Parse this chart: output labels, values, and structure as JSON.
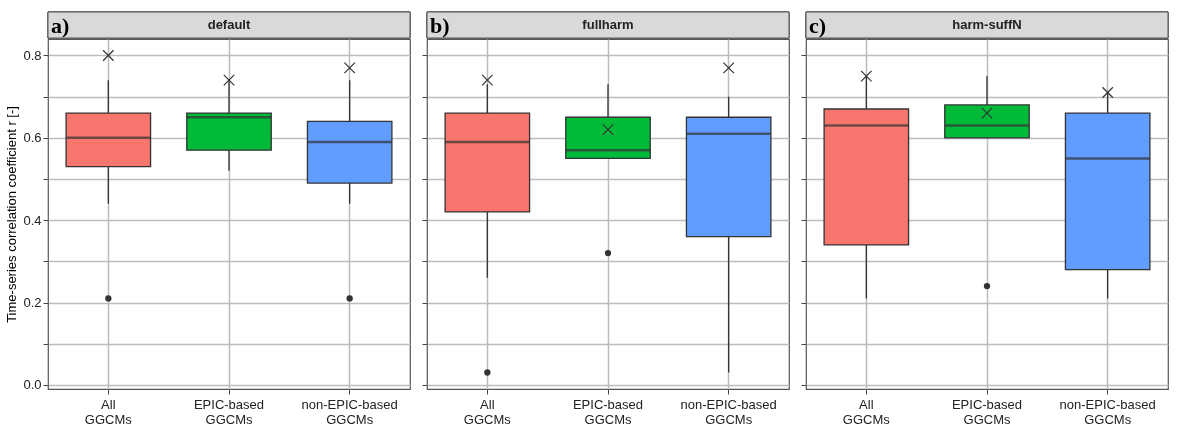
{
  "chart_data": [
    {
      "type": "box",
      "title": "default",
      "annotations": [
        "a)"
      ],
      "ylabel": "Time-series correlation coefficient r [-]",
      "categories": [
        "All GGCMs",
        "EPIC-based GGCMs",
        "non-EPIC-based GGCMs"
      ],
      "colors": [
        "#f8766d",
        "#00ba38",
        "#619cff"
      ],
      "ylim": [
        -0.01,
        0.84
      ],
      "yticks": [
        {
          "value": 0,
          "label": "0.0"
        },
        {
          "value": 0.1,
          "label": null
        },
        0.2,
        {
          "value": 0.3,
          "label": null
        },
        0.4,
        {
          "value": 0.5,
          "label": null
        },
        0.6,
        {
          "value": 0.7,
          "label": null
        },
        0.8
      ],
      "grid": true,
      "marker": "cross",
      "boxes": [
        {
          "low": 0.44,
          "q1": 0.53,
          "median": 0.6,
          "q3": 0.66,
          "high": 0.74,
          "mean": 0.8,
          "outliers": [
            0.21
          ]
        },
        {
          "low": 0.52,
          "q1": 0.57,
          "median": 0.65,
          "q3": 0.66,
          "high": 0.74,
          "mean": 0.74
        },
        {
          "low": 0.44,
          "q1": 0.49,
          "median": 0.59,
          "q3": 0.64,
          "high": 0.74,
          "mean": 0.77,
          "outliers": [
            0.21
          ]
        }
      ]
    },
    {
      "type": "box",
      "title": "fullharm",
      "annotations": [
        "b)"
      ],
      "categories": [
        "All GGCMs",
        "EPIC-based GGCMs",
        "non-EPIC-based GGCMs"
      ],
      "colors": [
        "#f8766d",
        "#00ba38",
        "#619cff"
      ],
      "ylim": [
        -0.01,
        0.84
      ],
      "yticks": [
        0,
        {
          "value": 0.1,
          "label": null
        },
        0.2,
        {
          "value": 0.3,
          "label": null
        },
        0.4,
        {
          "value": 0.5,
          "label": null
        },
        0.6,
        {
          "value": 0.7,
          "label": null
        },
        0.8
      ],
      "grid": true,
      "marker": "cross",
      "tick_labels": "x",
      "boxes": [
        {
          "low": 0.26,
          "q1": 0.42,
          "median": 0.59,
          "q3": 0.66,
          "high": 0.73,
          "mean": 0.74,
          "outliers": [
            0.03
          ]
        },
        {
          "low": 0.55,
          "q1": 0.55,
          "median": 0.57,
          "q3": 0.65,
          "high": 0.73,
          "mean": 0.62,
          "outliers": [
            0.32
          ]
        },
        {
          "low": 0.03,
          "q1": 0.36,
          "median": 0.61,
          "q3": 0.65,
          "high": 0.7,
          "mean": 0.77
        }
      ]
    },
    {
      "type": "box",
      "title": "harm-suffN",
      "annotations": [
        "c)"
      ],
      "categories": [
        "All GGCMs",
        "EPIC-based GGCMs",
        "non-EPIC-based GGCMs"
      ],
      "colors": [
        "#f8766d",
        "#00ba38",
        "#619cff"
      ],
      "ylim": [
        -0.01,
        0.84
      ],
      "yticks": [
        0,
        {
          "value": 0.1,
          "label": null
        },
        0.2,
        {
          "value": 0.3,
          "label": null
        },
        0.4,
        {
          "value": 0.5,
          "label": null
        },
        0.6,
        {
          "value": 0.7,
          "label": null
        },
        0.8
      ],
      "grid": true,
      "marker": "cross",
      "tick_labels": "x",
      "boxes": [
        {
          "low": 0.21,
          "q1": 0.34,
          "median": 0.63,
          "q3": 0.67,
          "high": 0.75,
          "mean": 0.75
        },
        {
          "low": 0.6,
          "q1": 0.6,
          "median": 0.63,
          "q3": 0.68,
          "high": 0.75,
          "mean": 0.66,
          "outliers": [
            0.24
          ]
        },
        {
          "low": 0.21,
          "q1": 0.28,
          "median": 0.55,
          "q3": 0.66,
          "high": 0.71,
          "mean": 0.71
        }
      ]
    }
  ]
}
